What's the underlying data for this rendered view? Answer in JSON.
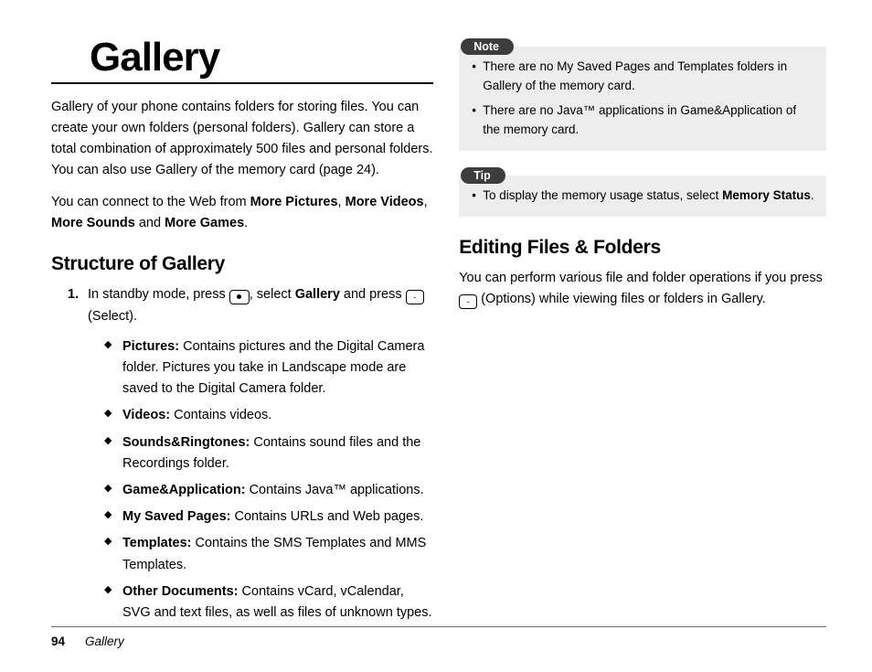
{
  "title": "Gallery",
  "intro": "Gallery of your phone contains folders for storing files. You can create your own folders (personal folders). Gallery can store a total combination of approximately 500 files and personal folders. You can also use Gallery of the memory card (page 24).",
  "connect_prefix": "You can connect to the Web from ",
  "connect_b1": "More Pictures",
  "connect_b2": "More Videos",
  "connect_b3": "More Sounds",
  "connect_b4": "More Games",
  "structure_heading": "Structure of Gallery",
  "step1_num": "1.",
  "step1_a": "In standby mode, press ",
  "step1_b": ", select ",
  "step1_gallery": "Gallery",
  "step1_c": " and press ",
  "step1_d": " (Select).",
  "folders": [
    {
      "name": "Pictures:",
      "desc": " Contains pictures and the Digital Camera folder. Pictures you take in Landscape mode are saved to the Digital Camera folder."
    },
    {
      "name": "Videos:",
      "desc": " Contains videos."
    },
    {
      "name": "Sounds&Ringtones:",
      "desc": " Contains sound files and the Recordings folder."
    },
    {
      "name": "Game&Application:",
      "desc": " Contains Java™ applications."
    },
    {
      "name": "My Saved Pages:",
      "desc": " Contains URLs and Web pages."
    },
    {
      "name": "Templates:",
      "desc": " Contains the SMS Templates and MMS Templates."
    },
    {
      "name": "Other Documents:",
      "desc": " Contains vCard, vCalendar, SVG and text files, as well as files of unknown types."
    }
  ],
  "note_label": "Note",
  "note_items": [
    "There are no My Saved Pages and Templates folders in Gallery of the memory card.",
    "There are no Java™ applications in Game&Application of the memory card."
  ],
  "tip_label": "Tip",
  "tip_prefix": "To display the memory usage status, select ",
  "tip_bold": "Memory Status",
  "tip_suffix": ".",
  "editing_heading": "Editing Files & Folders",
  "editing_a": "You can perform various file and folder operations if you press ",
  "editing_b": " (Options) while viewing files or folders in Gallery.",
  "footer_page": "94",
  "footer_section": "Gallery",
  "and_word": " and ",
  "comma": ", ",
  "period": "."
}
